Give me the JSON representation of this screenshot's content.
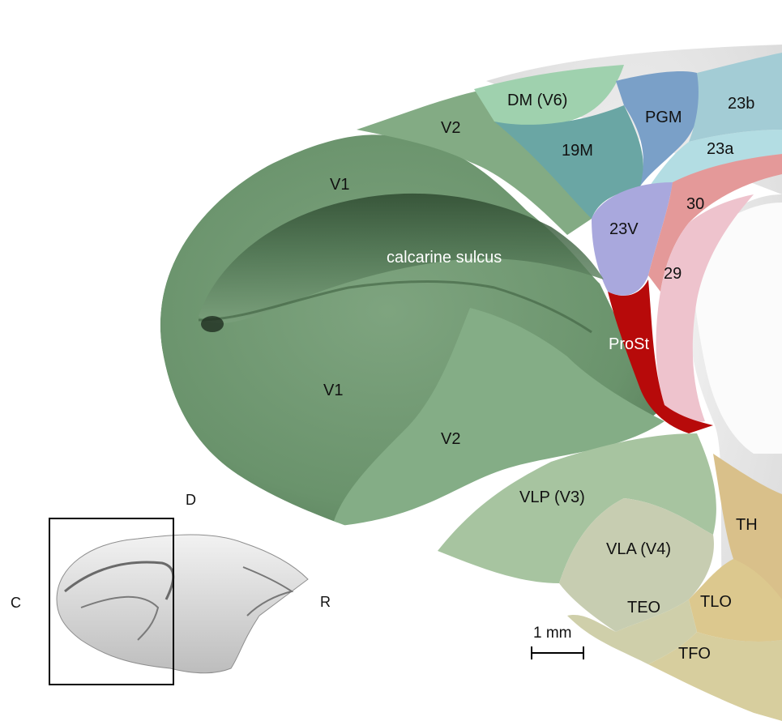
{
  "regions": {
    "dm_v6": "DM (V6)",
    "v2_top": "V2",
    "pgm": "PGM",
    "a23b": "23b",
    "m19": "19M",
    "a23a": "23a",
    "v1_top": "V1",
    "a30": "30",
    "v23": "23V",
    "calcarine": "calcarine sulcus",
    "a29": "29",
    "prost": "ProSt",
    "v1_bottom": "V1",
    "v2_bottom": "V2",
    "vlp_v3": "VLP (V3)",
    "th": "TH",
    "vla_v4": "VLA (V4)",
    "teo": "TEO",
    "tlo": "TLO",
    "tfo": "TFO"
  },
  "orientation": {
    "dorsal": "D",
    "caudal": "C",
    "rostral": "R"
  },
  "scale_bar": {
    "label": "1 mm"
  },
  "colors": {
    "v1": "#6e9670",
    "v2": "#84ad86",
    "dm": "#9fd1ae",
    "m19": "#6aa6a4",
    "pgm": "#7aa0c8",
    "a23a": "#b3dde3",
    "a23b": "#a3ccd5",
    "v23": "#a9a8dd",
    "a30": "#e49999",
    "a29": "#eec3cd",
    "prost": "#b70a0a",
    "vlp": "#a7c4a0",
    "vla": "#c7cdb1",
    "th": "#d9c08a",
    "tlo": "#dcc88e",
    "teo": "#cfcfaa",
    "tfo": "#d7ce9e"
  }
}
